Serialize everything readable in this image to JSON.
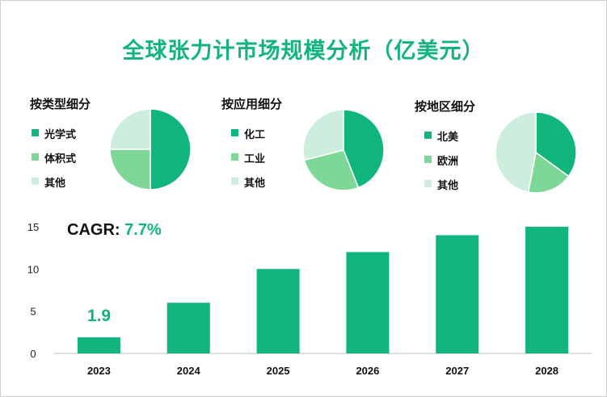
{
  "title": "全球张力计市场规模分析（亿美元）",
  "colors": {
    "accent": "#13b37c",
    "bar": "#0fb57b",
    "slice_1": "#0fb57b",
    "slice_2": "#7dd897",
    "slice_3": "#cdeedd"
  },
  "segments": [
    {
      "title": "按类型细分",
      "items": [
        {
          "label": "光学式"
        },
        {
          "label": "体积式"
        },
        {
          "label": "其他"
        }
      ]
    },
    {
      "title": "按应用细分",
      "items": [
        {
          "label": "化工"
        },
        {
          "label": "工业"
        },
        {
          "label": "其他"
        }
      ]
    },
    {
      "title": "按地区细分",
      "items": [
        {
          "label": "北美"
        },
        {
          "label": "欧洲"
        },
        {
          "label": "其他"
        }
      ]
    }
  ],
  "cagr": {
    "label": "CAGR: ",
    "value": "7.7%"
  },
  "chart_data": [
    {
      "type": "pie",
      "title": "按类型细分",
      "labels": [
        "光学式",
        "体积式",
        "其他"
      ],
      "values": [
        50,
        25,
        25
      ]
    },
    {
      "type": "pie",
      "title": "按应用细分",
      "labels": [
        "化工",
        "工业",
        "其他"
      ],
      "values": [
        44,
        27,
        29
      ]
    },
    {
      "type": "pie",
      "title": "按地区细分",
      "labels": [
        "北美",
        "欧洲",
        "其他"
      ],
      "values": [
        35,
        18,
        47
      ]
    },
    {
      "type": "bar",
      "categories": [
        "2023",
        "2024",
        "2025",
        "2026",
        "2027",
        "2028"
      ],
      "values": [
        1.9,
        6,
        10,
        12,
        14,
        15
      ],
      "ylim": [
        0,
        15
      ],
      "yticks": [
        0,
        5,
        10,
        15
      ],
      "data_labels": [
        {
          "index": 0,
          "text": "1.9"
        }
      ],
      "grid": false
    }
  ]
}
